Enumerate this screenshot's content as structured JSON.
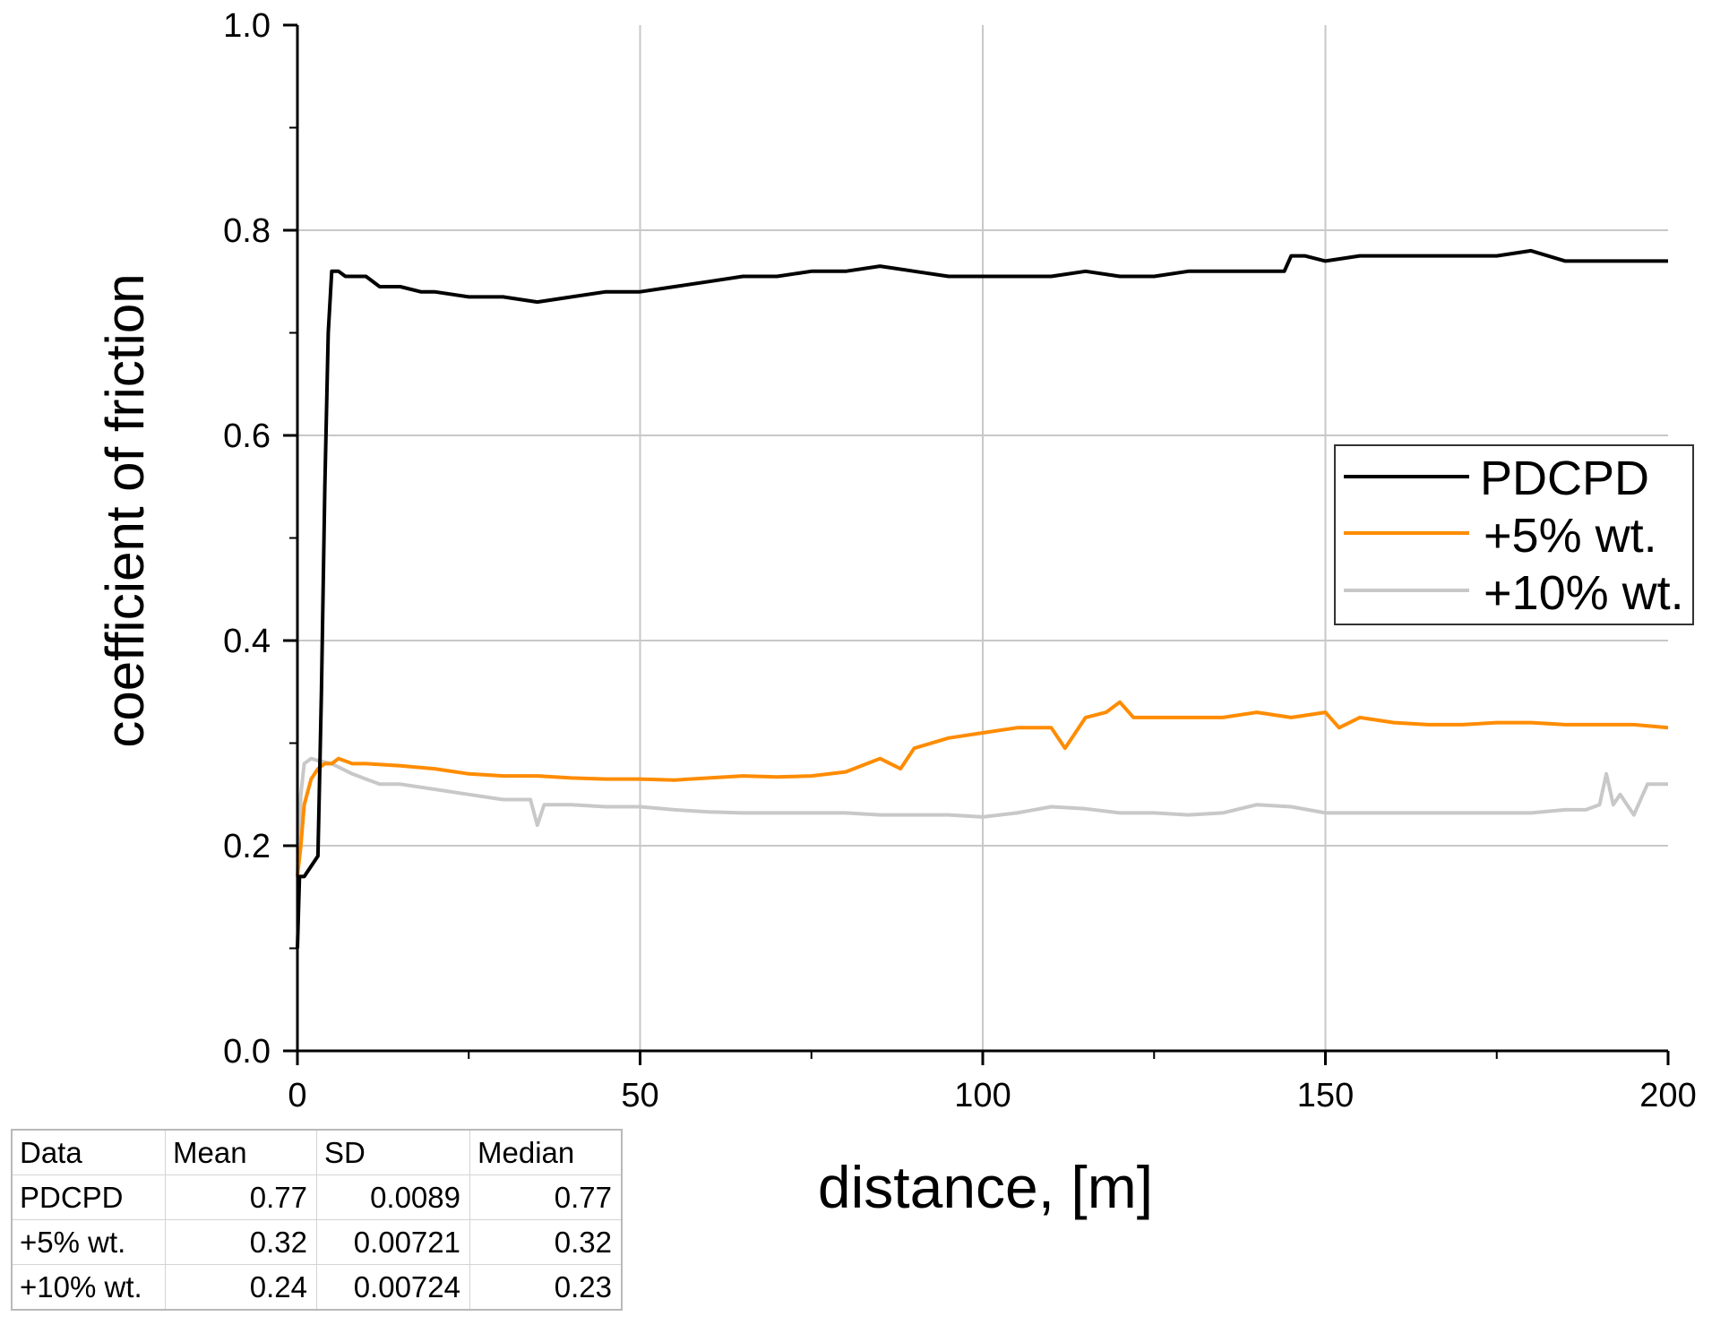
{
  "chart_data": {
    "type": "line",
    "title": "",
    "xlabel": "distance, [m]",
    "ylabel": "coefficient of friction",
    "xlim": [
      0,
      200
    ],
    "ylim": [
      0.0,
      1.0
    ],
    "xticks": [
      "0",
      "50",
      "100",
      "150",
      "200"
    ],
    "yticks": [
      "0.0",
      "0.2",
      "0.4",
      "0.6",
      "0.8",
      "1.0"
    ],
    "grid": true,
    "legend_position": "right-middle",
    "series": [
      {
        "name": "PDCPD",
        "color": "#000000",
        "x": [
          0,
          0.3,
          1,
          2,
          3,
          3.5,
          4,
          4.5,
          5,
          5.5,
          6,
          7,
          8,
          10,
          12,
          15,
          18,
          20,
          25,
          30,
          35,
          40,
          45,
          50,
          55,
          60,
          65,
          70,
          75,
          80,
          85,
          90,
          95,
          100,
          105,
          110,
          115,
          120,
          125,
          130,
          135,
          140,
          144,
          145,
          147,
          150,
          155,
          160,
          165,
          170,
          175,
          180,
          185,
          190,
          195,
          200
        ],
        "y": [
          0.1,
          0.17,
          0.17,
          0.18,
          0.19,
          0.35,
          0.55,
          0.7,
          0.76,
          0.76,
          0.76,
          0.755,
          0.755,
          0.755,
          0.745,
          0.745,
          0.74,
          0.74,
          0.735,
          0.735,
          0.73,
          0.735,
          0.74,
          0.74,
          0.745,
          0.75,
          0.755,
          0.755,
          0.76,
          0.76,
          0.765,
          0.76,
          0.755,
          0.755,
          0.755,
          0.755,
          0.76,
          0.755,
          0.755,
          0.76,
          0.76,
          0.76,
          0.76,
          0.775,
          0.775,
          0.77,
          0.775,
          0.775,
          0.775,
          0.775,
          0.775,
          0.78,
          0.77,
          0.77,
          0.77,
          0.77
        ]
      },
      {
        "name": "+5% wt.",
        "color": "#ff8c00",
        "x": [
          0,
          0.5,
          1,
          2,
          3,
          4,
          5,
          6,
          8,
          10,
          15,
          20,
          25,
          30,
          35,
          40,
          45,
          50,
          55,
          60,
          65,
          70,
          75,
          80,
          85,
          88,
          90,
          95,
          100,
          105,
          110,
          112,
          115,
          118,
          120,
          122,
          125,
          130,
          135,
          140,
          145,
          150,
          152,
          155,
          160,
          165,
          170,
          175,
          180,
          185,
          190,
          195,
          200
        ],
        "y": [
          0.17,
          0.2,
          0.24,
          0.265,
          0.275,
          0.28,
          0.28,
          0.285,
          0.28,
          0.28,
          0.278,
          0.275,
          0.27,
          0.268,
          0.268,
          0.266,
          0.265,
          0.265,
          0.264,
          0.266,
          0.268,
          0.267,
          0.268,
          0.272,
          0.285,
          0.275,
          0.295,
          0.305,
          0.31,
          0.315,
          0.315,
          0.295,
          0.325,
          0.33,
          0.34,
          0.325,
          0.325,
          0.325,
          0.325,
          0.33,
          0.325,
          0.33,
          0.315,
          0.325,
          0.32,
          0.318,
          0.318,
          0.32,
          0.32,
          0.318,
          0.318,
          0.318,
          0.315
        ]
      },
      {
        "name": "+10% wt.",
        "color": "#c8c8c8",
        "x": [
          0,
          0.5,
          1,
          2,
          3,
          5,
          8,
          10,
          12,
          15,
          20,
          25,
          30,
          34,
          35,
          36,
          40,
          45,
          50,
          55,
          60,
          65,
          70,
          75,
          80,
          85,
          90,
          95,
          100,
          105,
          110,
          115,
          120,
          125,
          130,
          135,
          140,
          145,
          150,
          155,
          160,
          165,
          170,
          175,
          180,
          185,
          188,
          190,
          191,
          192,
          193,
          195,
          197,
          200
        ],
        "y": [
          0.17,
          0.25,
          0.28,
          0.285,
          0.283,
          0.28,
          0.27,
          0.265,
          0.26,
          0.26,
          0.255,
          0.25,
          0.245,
          0.245,
          0.22,
          0.24,
          0.24,
          0.238,
          0.238,
          0.235,
          0.233,
          0.232,
          0.232,
          0.232,
          0.232,
          0.23,
          0.23,
          0.23,
          0.228,
          0.232,
          0.238,
          0.236,
          0.232,
          0.232,
          0.23,
          0.232,
          0.24,
          0.238,
          0.232,
          0.232,
          0.232,
          0.232,
          0.232,
          0.232,
          0.232,
          0.235,
          0.235,
          0.24,
          0.27,
          0.24,
          0.25,
          0.23,
          0.26,
          0.26
        ]
      }
    ]
  },
  "stats_table": {
    "headers": [
      "Data",
      "Mean",
      "SD",
      "Median"
    ],
    "rows": [
      [
        "PDCPD",
        "0.77",
        "0.0089",
        "0.77"
      ],
      [
        "+5% wt.",
        "0.32",
        "0.00721",
        "0.32"
      ],
      [
        "+10% wt.",
        "0.24",
        "0.00724",
        "0.23"
      ]
    ]
  }
}
